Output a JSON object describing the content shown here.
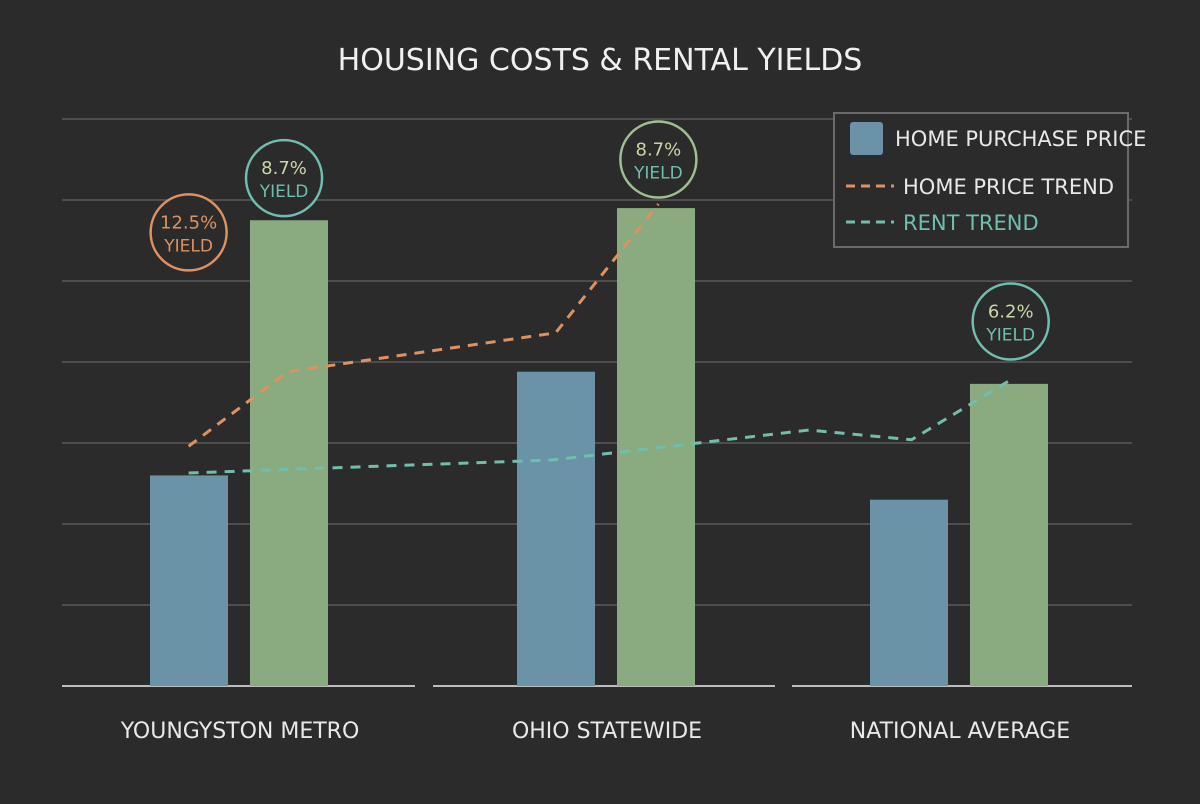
{
  "chart_data": {
    "type": "bar",
    "title": "HOUSING COSTS & RENTAL YIELDS",
    "categories": [
      "YOUNGYSTON METRO",
      "OHIO STATEWIDE",
      "NATIONAL AVERAGE"
    ],
    "ylim": [
      0,
      7
    ],
    "grid": true,
    "series": [
      {
        "name": "HOME PURCHASE PRICE",
        "kind": "bar",
        "color": "#6a93a8",
        "values": [
          2.6,
          3.88,
          2.3
        ]
      },
      {
        "kind": "bar",
        "color": "#8aab80",
        "values": [
          5.75,
          5.9,
          3.73
        ]
      }
    ],
    "lines": [
      {
        "name": "HOME PRICE TREND",
        "color": "#e0915f",
        "points": [
          [
            -0.14,
            2.96
          ],
          [
            0.13,
            3.88
          ],
          [
            0.86,
            4.36
          ],
          [
            1.14,
            5.95
          ]
        ]
      },
      {
        "name": "RENT TREND",
        "color": "#6fbfae",
        "points": [
          [
            -0.14,
            2.63
          ],
          [
            0.85,
            2.79
          ],
          [
            1.55,
            3.16
          ],
          [
            1.83,
            3.04
          ],
          [
            2.1,
            3.78
          ]
        ]
      }
    ],
    "annotations": [
      {
        "value": "12.5%",
        "label": "YIELD",
        "color": "#e0915f",
        "text_color": "#e0915f",
        "label_color": "#e0915f",
        "at": [
          -0.14,
          5.6
        ]
      },
      {
        "value": "8.7%",
        "label": "YIELD",
        "color": "#6fbfae",
        "text_color": "#c9d6a8",
        "label_color": "#6fbfae",
        "at": [
          0.12,
          6.27
        ]
      },
      {
        "value": "8.7%",
        "label": "YIELD",
        "color": "#9fbf90",
        "text_color": "#c9d6a8",
        "label_color": "#6fbfae",
        "at": [
          1.14,
          6.5
        ]
      },
      {
        "value": "6.2%",
        "label": "YIELD",
        "color": "#6fbfae",
        "text_color": "#c9d6a8",
        "label_color": "#6fbfae",
        "at": [
          2.1,
          4.5
        ]
      }
    ],
    "legend": {
      "position": "top-right",
      "items": [
        {
          "label": "HOME PURCHASE PRICE",
          "type": "swatch",
          "color": "#6a93a8",
          "text_color": "#e8e8e8"
        },
        {
          "label": "HOME PRICE TREND",
          "type": "dash",
          "color": "#e0915f",
          "text_color": "#e8e8e8"
        },
        {
          "label": "RENT TREND",
          "type": "dash",
          "color": "#6fbfae",
          "text_color": "#6fbfae"
        }
      ]
    }
  }
}
